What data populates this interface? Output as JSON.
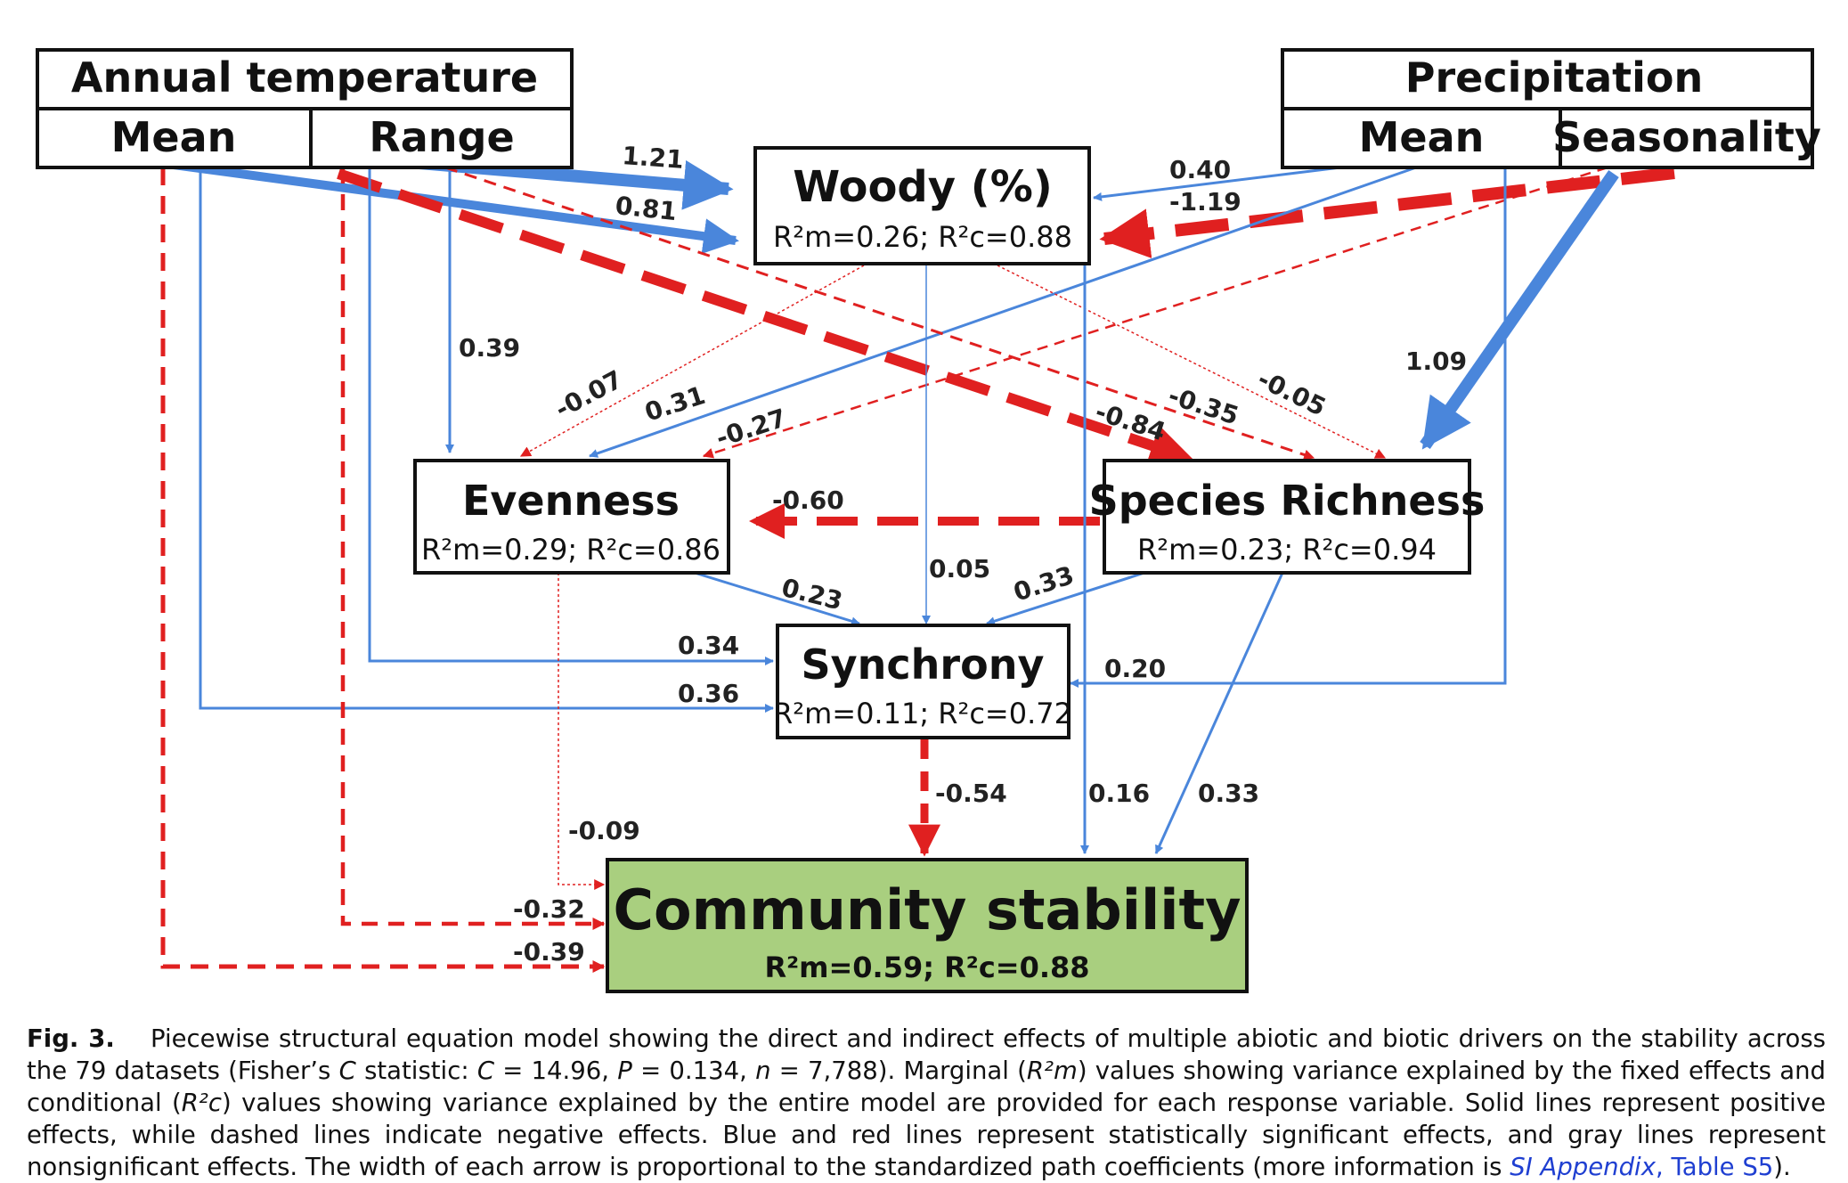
{
  "nodes": {
    "annual_temperature": {
      "title": "Annual temperature",
      "mean": "Mean",
      "range": "Range"
    },
    "precipitation": {
      "title": "Precipitation",
      "mean": "Mean",
      "seasonality": "Seasonality"
    },
    "woody": {
      "title": "Woody (%)",
      "r2": "R²m=0.26; R²c=0.88"
    },
    "evenness": {
      "title": "Evenness",
      "r2": "R²m=0.29; R²c=0.86"
    },
    "species_richness": {
      "title": "Species Richness",
      "r2": "R²m=0.23; R²c=0.94"
    },
    "synchrony": {
      "title": "Synchrony",
      "r2": "R²m=0.11; R²c=0.72"
    },
    "community_stability": {
      "title": "Community stability",
      "r2": "R²m=0.59; R²c=0.88"
    }
  },
  "colors": {
    "positive": "#4a86db",
    "negative": "#e02020",
    "stability_fill": "#a9cf7f"
  },
  "paths": [
    {
      "id": "tmean-woody",
      "label": "0.81"
    },
    {
      "id": "trange-woody",
      "label": "1.21"
    },
    {
      "id": "pmean-woody",
      "label": "0.40"
    },
    {
      "id": "pseas-woody",
      "label": "-1.19"
    },
    {
      "id": "trange-evenness",
      "label": "0.39"
    },
    {
      "id": "woody-evenness",
      "label": "-0.07"
    },
    {
      "id": "pmean-evenness",
      "label": "0.31"
    },
    {
      "id": "pseas-evenness",
      "label": "-0.27"
    },
    {
      "id": "tmean-richness",
      "label": "-0.84"
    },
    {
      "id": "trange-richness",
      "label": "-0.35"
    },
    {
      "id": "woody-richness",
      "label": "-0.05"
    },
    {
      "id": "pseas-richness",
      "label": "1.09"
    },
    {
      "id": "richness-evenness",
      "label": "-0.60"
    },
    {
      "id": "woody-synchrony",
      "label": "0.05"
    },
    {
      "id": "evenness-synchrony",
      "label": "0.23"
    },
    {
      "id": "richness-synchrony",
      "label": "0.33"
    },
    {
      "id": "trange-synchrony",
      "label": "0.34"
    },
    {
      "id": "tmean-synchrony",
      "label": "0.36"
    },
    {
      "id": "pmean-synchrony",
      "label": "0.20"
    },
    {
      "id": "synchrony-stability",
      "label": "-0.54"
    },
    {
      "id": "woody-stability",
      "label": "0.16"
    },
    {
      "id": "richness-stability",
      "label": "0.33"
    },
    {
      "id": "evenness-stability",
      "label": "-0.09"
    },
    {
      "id": "trange-stability",
      "label": "-0.32"
    },
    {
      "id": "tmean-stability",
      "label": "-0.39"
    }
  ],
  "caption": {
    "fig_label": "Fig. 3.",
    "text_1": "Piecewise structural equation model showing the direct and indirect effects of multiple abiotic and biotic drivers on the stability across the 79 datasets (Fisher’s ",
    "c_italic": "C",
    "text_2": " statistic: ",
    "c_eq_italic": "C",
    "text_3": " = 14.96, ",
    "p_italic": "P",
    "text_4": " = 0.134, ",
    "n_italic": "n",
    "text_5": " = 7,788). Marginal (",
    "r2m_italic": "R²m",
    "text_6": ") values showing variance explained by the fixed effects and conditional (",
    "r2c_italic": "R²c",
    "text_7": ") values showing variance explained by the entire model are provided for each response variable. Solid lines represent positive effects, while dashed lines indicate negative effects. Blue and red lines represent statistically significant effects, and gray lines represent nonsignificant effects. The width of each arrow is proportional to the standardized path coefficients (more information is ",
    "link_italic": "SI Appendix",
    "link_rest": ", Table S5",
    "text_8": ")."
  }
}
